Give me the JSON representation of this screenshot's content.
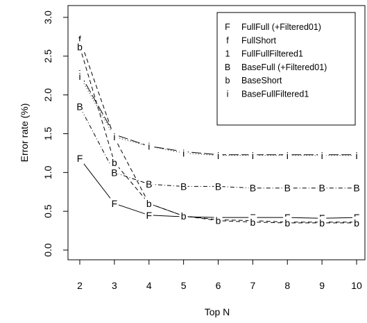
{
  "chart_data": {
    "type": "line",
    "title": "",
    "xlabel": "Top N",
    "ylabel": "Error rate (%)",
    "x": [
      2,
      3,
      4,
      5,
      6,
      7,
      8,
      9,
      10
    ],
    "xlim": [
      2,
      10
    ],
    "ylim": [
      0.0,
      3.0
    ],
    "xticks": [
      "2",
      "3",
      "4",
      "5",
      "6",
      "7",
      "8",
      "9",
      "10"
    ],
    "yticks": [
      "0.0",
      "0.5",
      "1.0",
      "1.5",
      "2.0",
      "2.5",
      "3.0"
    ],
    "grid": false,
    "legend_position": "top-right",
    "series": [
      {
        "symbol": "F",
        "name": "FullFull (+Filtered01)",
        "dash": "solid",
        "values": [
          1.18,
          0.6,
          0.45,
          0.43,
          0.42,
          0.42,
          0.42,
          0.41,
          0.42
        ]
      },
      {
        "symbol": "f",
        "name": "FullShort",
        "dash": "dashed",
        "values": [
          2.72,
          1.45,
          0.6,
          0.44,
          0.39,
          0.38,
          0.36,
          0.36,
          0.36
        ]
      },
      {
        "symbol": "1",
        "name": "FullFullFiltered1",
        "dash": "longdash",
        "values": [
          2.28,
          1.49,
          1.34,
          1.27,
          1.23,
          1.23,
          1.23,
          1.23,
          1.23
        ]
      },
      {
        "symbol": "B",
        "name": "BaseFull (+Filtered01)",
        "dash": "dotdash",
        "values": [
          1.85,
          1.0,
          0.85,
          0.82,
          0.82,
          0.8,
          0.8,
          0.8,
          0.8
        ]
      },
      {
        "symbol": "b",
        "name": "BaseShort",
        "dash": "dashed",
        "values": [
          2.62,
          1.13,
          0.6,
          0.44,
          0.38,
          0.36,
          0.35,
          0.35,
          0.35
        ]
      },
      {
        "symbol": "i",
        "name": "BaseFullFiltered1",
        "dash": "dotted",
        "values": [
          2.24,
          1.46,
          1.34,
          1.25,
          1.22,
          1.22,
          1.22,
          1.22,
          1.22
        ]
      }
    ]
  }
}
